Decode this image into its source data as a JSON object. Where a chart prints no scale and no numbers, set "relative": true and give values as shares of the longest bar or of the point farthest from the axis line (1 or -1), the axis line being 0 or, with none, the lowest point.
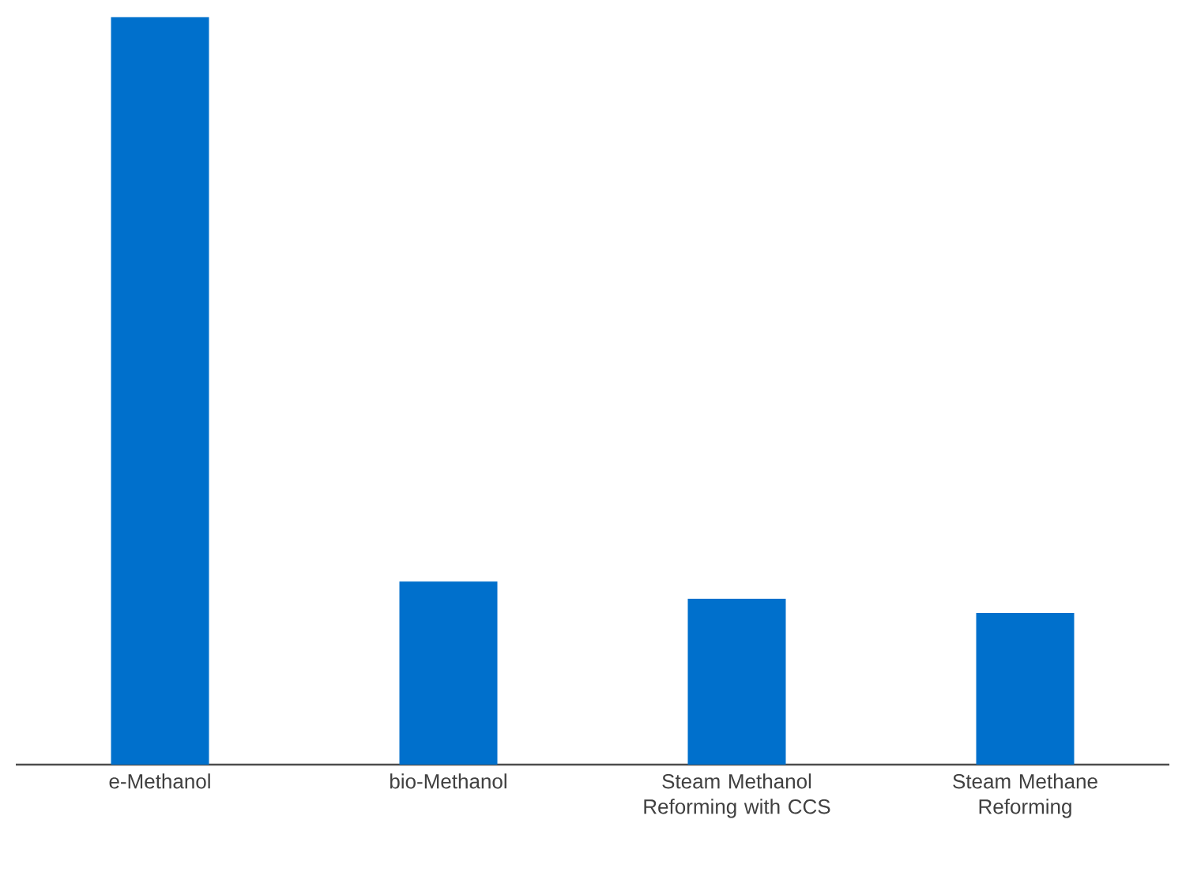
{
  "chart_data": {
    "type": "bar",
    "relative": true,
    "categories": [
      "e-Methanol",
      "bio-Methanol",
      "Steam Methanol Reforming with CCS",
      "Steam Methane Reforming"
    ],
    "values": [
      1,
      0.245,
      0.222,
      0.203
    ],
    "color": "#0070cc"
  }
}
